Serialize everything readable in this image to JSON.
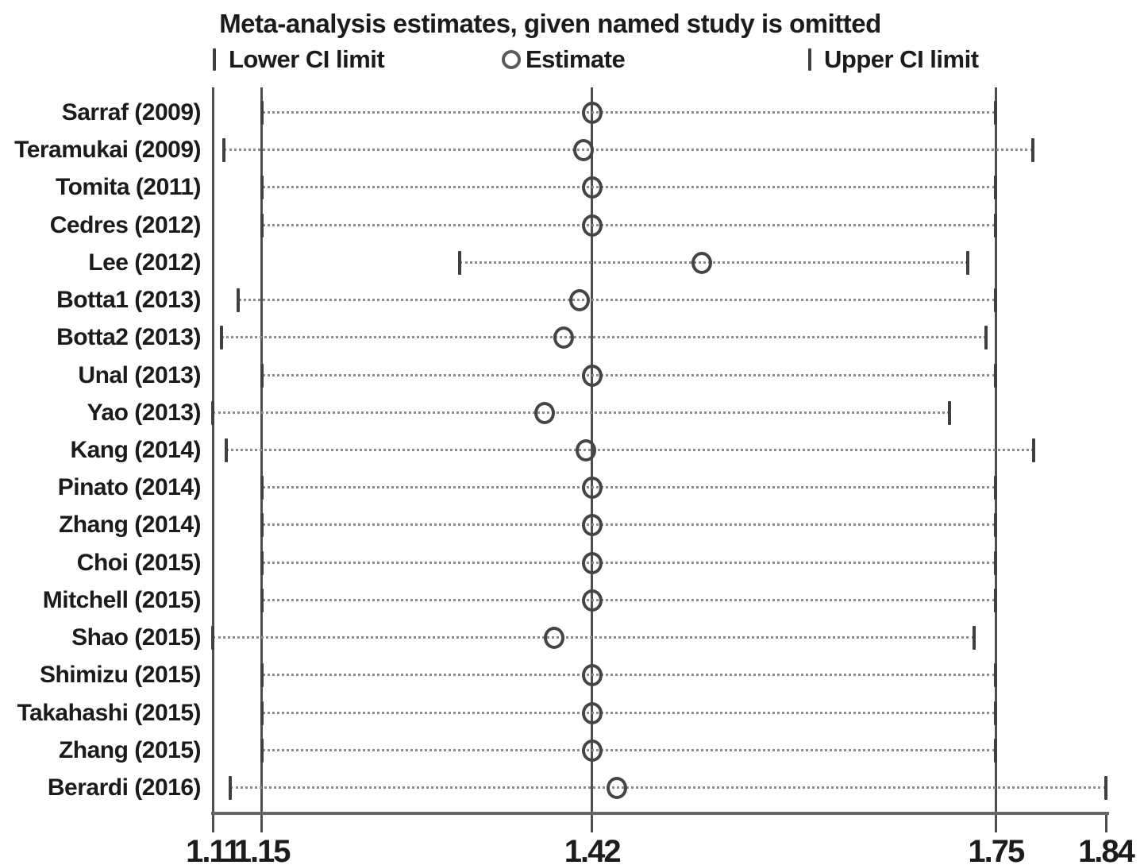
{
  "chart_data": {
    "type": "scatter",
    "subtype": "leave-one-out sensitivity forest plot",
    "title": "Meta-analysis estimates, given named study is omitted",
    "legend": {
      "position": "top",
      "items": [
        {
          "glyph": "ci-tick-icon",
          "label": "Lower CI limit"
        },
        {
          "glyph": "circle-icon",
          "label": "Estimate"
        },
        {
          "glyph": "ci-tick-icon",
          "label": "Upper CI limit"
        }
      ]
    },
    "x_axis": {
      "min": 1.11,
      "max": 1.84,
      "ticks": [
        1.11,
        1.15,
        1.42,
        1.75,
        1.84
      ],
      "tick_labels": [
        "1.11",
        "1.15",
        "1.42",
        "1.75",
        "1.84"
      ]
    },
    "reference_lines": {
      "overall_lower_ci": 1.15,
      "overall_estimate": 1.42,
      "overall_upper_ci": 1.75
    },
    "grid": "off",
    "studies": [
      {
        "label": "Sarraf (2009)",
        "lower": 1.15,
        "estimate": 1.42,
        "upper": 1.75
      },
      {
        "label": "Teramukai (2009)",
        "lower": 1.119,
        "estimate": 1.413,
        "upper": 1.78
      },
      {
        "label": "Tomita (2011)",
        "lower": 1.15,
        "estimate": 1.42,
        "upper": 1.75
      },
      {
        "label": "Cedres (2012)",
        "lower": 1.15,
        "estimate": 1.42,
        "upper": 1.75
      },
      {
        "label": "Lee (2012)",
        "lower": 1.312,
        "estimate": 1.51,
        "upper": 1.727
      },
      {
        "label": "Botta1 (2013)",
        "lower": 1.131,
        "estimate": 1.41,
        "upper": 1.75
      },
      {
        "label": "Botta2 (2013)",
        "lower": 1.117,
        "estimate": 1.397,
        "upper": 1.742
      },
      {
        "label": "Unal (2013)",
        "lower": 1.15,
        "estimate": 1.42,
        "upper": 1.75
      },
      {
        "label": "Yao (2013)",
        "lower": 1.11,
        "estimate": 1.381,
        "upper": 1.712
      },
      {
        "label": "Kang (2014)",
        "lower": 1.121,
        "estimate": 1.415,
        "upper": 1.781
      },
      {
        "label": "Pinato (2014)",
        "lower": 1.15,
        "estimate": 1.42,
        "upper": 1.75
      },
      {
        "label": "Zhang (2014)",
        "lower": 1.15,
        "estimate": 1.42,
        "upper": 1.75
      },
      {
        "label": "Choi (2015)",
        "lower": 1.15,
        "estimate": 1.42,
        "upper": 1.75
      },
      {
        "label": "Mitchell (2015)",
        "lower": 1.15,
        "estimate": 1.42,
        "upper": 1.75
      },
      {
        "label": "Shao (2015)",
        "lower": 1.11,
        "estimate": 1.389,
        "upper": 1.732
      },
      {
        "label": "Shimizu (2015)",
        "lower": 1.15,
        "estimate": 1.42,
        "upper": 1.75
      },
      {
        "label": "Takahashi (2015)",
        "lower": 1.15,
        "estimate": 1.42,
        "upper": 1.75
      },
      {
        "label": "Zhang (2015)",
        "lower": 1.15,
        "estimate": 1.42,
        "upper": 1.75
      },
      {
        "label": "Berardi (2016)",
        "lower": 1.124,
        "estimate": 1.44,
        "upper": 1.84
      }
    ]
  },
  "colors": {
    "background": "#ffffff",
    "text": "#1b1b1b",
    "axis_line": "#666666",
    "reference_line": "#4f4f4f",
    "dotted_ci_line": "#8c8c8c",
    "ci_tick": "#3f3f3f",
    "estimate_circle": "#454545"
  }
}
